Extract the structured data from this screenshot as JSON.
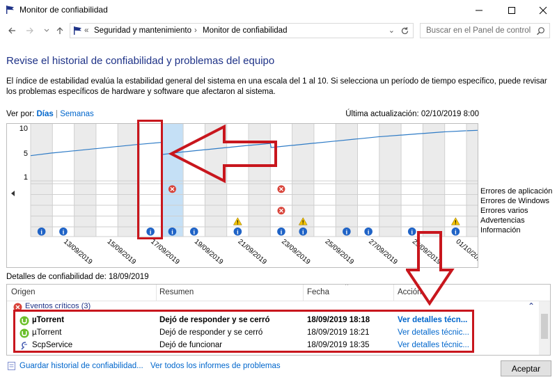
{
  "window": {
    "title": "Monitor de confiabilidad"
  },
  "nav": {
    "breadcrumb_sep": "«",
    "crumb1": "Seguridad y mantenimiento",
    "crumb2": "Monitor de confiabilidad",
    "search_placeholder": "Buscar en el Panel de control"
  },
  "page": {
    "heading": "Revise el historial de confiabilidad y problemas del equipo",
    "description": "El índice de estabilidad evalúa la estabilidad general del sistema en una escala del 1 al 10. Si selecciona un período de tiempo específico, puede revisar los problemas específicos de hardware y software que afectaron al sistema.",
    "view_by_label": "Ver por:",
    "view_days": "Días",
    "view_sep": "|",
    "view_weeks": "Semanas",
    "last_update": "Última actualización: 02/10/2019 8:00"
  },
  "chart_data": {
    "type": "line",
    "title": "",
    "y_ticks": [
      "10",
      "5",
      "1"
    ],
    "ylim": [
      1,
      10
    ],
    "x_labels": [
      "13/09/2019",
      "15/09/2019",
      "17/09/2019",
      "19/09/2019",
      "21/09/2019",
      "23/09/2019",
      "25/09/2019",
      "27/09/2019",
      "29/09/2019",
      "01/10/2019"
    ],
    "days": [
      "12/09",
      "13/09",
      "14/09",
      "15/09",
      "16/09",
      "17/09",
      "18/09",
      "19/09",
      "20/09",
      "21/09",
      "22/09",
      "23/09",
      "24/09",
      "25/09",
      "26/09",
      "27/09",
      "28/09",
      "29/09",
      "30/09",
      "01/10",
      "02/10"
    ],
    "stability_index": [
      4.9,
      5.4,
      5.8,
      6.2,
      6.6,
      7.0,
      5.1,
      5.6,
      6.0,
      6.4,
      6.8,
      6.4,
      6.8,
      7.2,
      7.6,
      8.0,
      8.4,
      8.7,
      9.0,
      9.3,
      9.5
    ],
    "selected_day": "18/09",
    "legend": [
      "Errores de aplicación",
      "Errores de Windows",
      "Errores varios",
      "Advertencias",
      "Información"
    ],
    "events": {
      "app_errors": [
        "18/09",
        "23/09"
      ],
      "misc_errors": [
        "23/09"
      ],
      "warnings": [
        "21/09",
        "24/09",
        "01/10"
      ],
      "info": [
        "12/09",
        "13/09",
        "17/09",
        "18/09",
        "19/09",
        "21/09",
        "23/09",
        "24/09",
        "26/09",
        "27/09",
        "29/09",
        "01/10"
      ]
    }
  },
  "details": {
    "label": "Detalles de confiabilidad de: 18/09/2019",
    "columns": [
      "Origen",
      "Resumen",
      "Fecha",
      "Acción"
    ],
    "group": "Eventos críticos (3)",
    "rows": [
      {
        "origin": "µTorrent",
        "summary": "Dejó de responder y se cerró",
        "date": "18/09/2019 18:18",
        "action": "Ver detalles técn...",
        "bold": true
      },
      {
        "origin": "µTorrent",
        "summary": "Dejó de responder y se cerró",
        "date": "18/09/2019 18:21",
        "action": "Ver detalles técnic..."
      },
      {
        "origin": "ScpService",
        "summary": "Dejó de funcionar",
        "date": "18/09/2019 18:35",
        "action": "Ver detalles técnic..."
      }
    ]
  },
  "footer": {
    "save_link": "Guardar historial de confiabilidad...",
    "reports_link": "Ver todos los informes de problemas",
    "accept": "Aceptar"
  }
}
